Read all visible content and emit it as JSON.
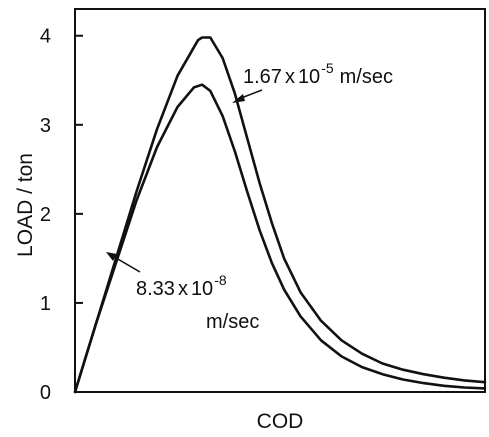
{
  "chart_data": {
    "type": "line",
    "title": "",
    "xlabel": "COD",
    "ylabel": "LOAD / ton",
    "xlim": [
      0,
      10
    ],
    "ylim": [
      0,
      4.3
    ],
    "yticks": [
      {
        "value": 0,
        "label": "0"
      },
      {
        "value": 1,
        "label": "1"
      },
      {
        "value": 2,
        "label": "2"
      },
      {
        "value": 3,
        "label": "3"
      },
      {
        "value": 4,
        "label": "4"
      }
    ],
    "series": [
      {
        "annotation": {
          "coef": "1.67",
          "times": "x",
          "base": "10",
          "exponent": "-5",
          "unit": "m/sec"
        },
        "x": [
          0,
          0.5,
          1.0,
          1.5,
          2.0,
          2.5,
          3.0,
          3.1,
          3.3,
          3.6,
          3.9,
          4.2,
          4.5,
          4.8,
          5.1,
          5.5,
          6.0,
          6.5,
          7.0,
          7.5,
          8.0,
          8.5,
          9.0,
          9.5,
          10.0
        ],
        "y": [
          0,
          0.75,
          1.5,
          2.25,
          2.95,
          3.55,
          3.95,
          3.98,
          3.98,
          3.75,
          3.35,
          2.85,
          2.35,
          1.9,
          1.5,
          1.12,
          0.8,
          0.58,
          0.43,
          0.32,
          0.25,
          0.2,
          0.16,
          0.13,
          0.11
        ]
      },
      {
        "annotation": {
          "coef": "8.33",
          "times": "x",
          "base": "10",
          "exponent": "-8",
          "unit": "m/sec"
        },
        "x": [
          0,
          0.5,
          1.0,
          1.5,
          2.0,
          2.5,
          2.9,
          3.1,
          3.3,
          3.6,
          3.9,
          4.2,
          4.5,
          4.8,
          5.1,
          5.5,
          6.0,
          6.5,
          7.0,
          7.5,
          8.0,
          8.5,
          9.0,
          9.5,
          10.0
        ],
        "y": [
          0,
          0.75,
          1.45,
          2.15,
          2.75,
          3.2,
          3.42,
          3.45,
          3.38,
          3.1,
          2.7,
          2.25,
          1.82,
          1.45,
          1.15,
          0.85,
          0.58,
          0.4,
          0.28,
          0.2,
          0.14,
          0.1,
          0.07,
          0.05,
          0.04
        ]
      }
    ],
    "grid": false,
    "legend": "none"
  }
}
